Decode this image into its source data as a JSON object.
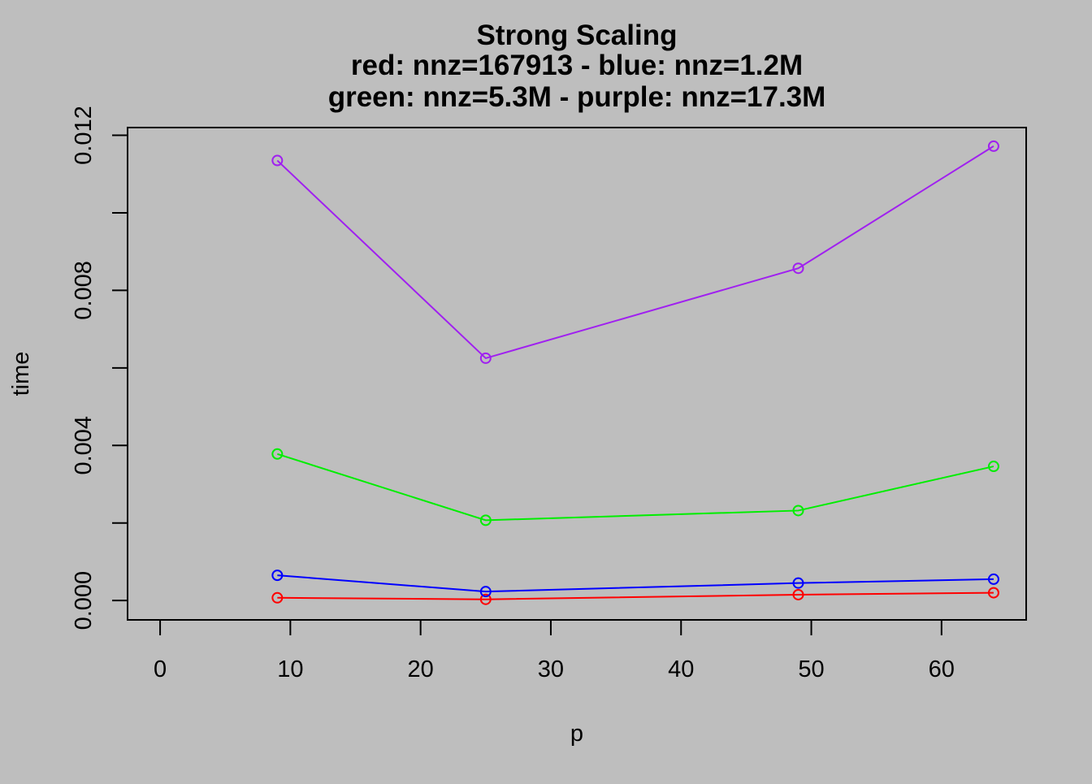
{
  "chart_data": {
    "type": "line",
    "title_lines": [
      "Strong Scaling",
      "red: nnz=167913 -  blue: nnz=1.2M",
      "green: nnz=5.3M  -  purple: nnz=17.3M"
    ],
    "xlabel": "p",
    "ylabel": "time",
    "xlim": [
      -2.5,
      66.5
    ],
    "ylim": [
      -0.0005,
      0.0122
    ],
    "x_ticks": [
      0,
      10,
      20,
      30,
      40,
      50,
      60
    ],
    "x_tick_labels": [
      "0",
      "10",
      "20",
      "30",
      "40",
      "50",
      "60"
    ],
    "y_ticks": [
      0,
      0.002,
      0.004,
      0.006,
      0.008,
      0.01,
      0.012
    ],
    "y_tick_labels": [
      "0.000",
      "",
      "0.004",
      "",
      "0.008",
      "",
      "0.012"
    ],
    "grid": false,
    "legend": "none",
    "marker": "open-circle",
    "x": [
      9,
      25,
      49,
      64
    ],
    "series": [
      {
        "color": "#ff0000",
        "values": [
          7e-05,
          3e-05,
          0.00015,
          0.0002
        ]
      },
      {
        "color": "#0000ff",
        "values": [
          0.00065,
          0.00023,
          0.00045,
          0.00055
        ]
      },
      {
        "color": "#00ee00",
        "values": [
          0.00378,
          0.00207,
          0.00232,
          0.00346
        ]
      },
      {
        "color": "#a020f0",
        "values": [
          0.01135,
          0.00625,
          0.00857,
          0.01172
        ]
      }
    ]
  }
}
